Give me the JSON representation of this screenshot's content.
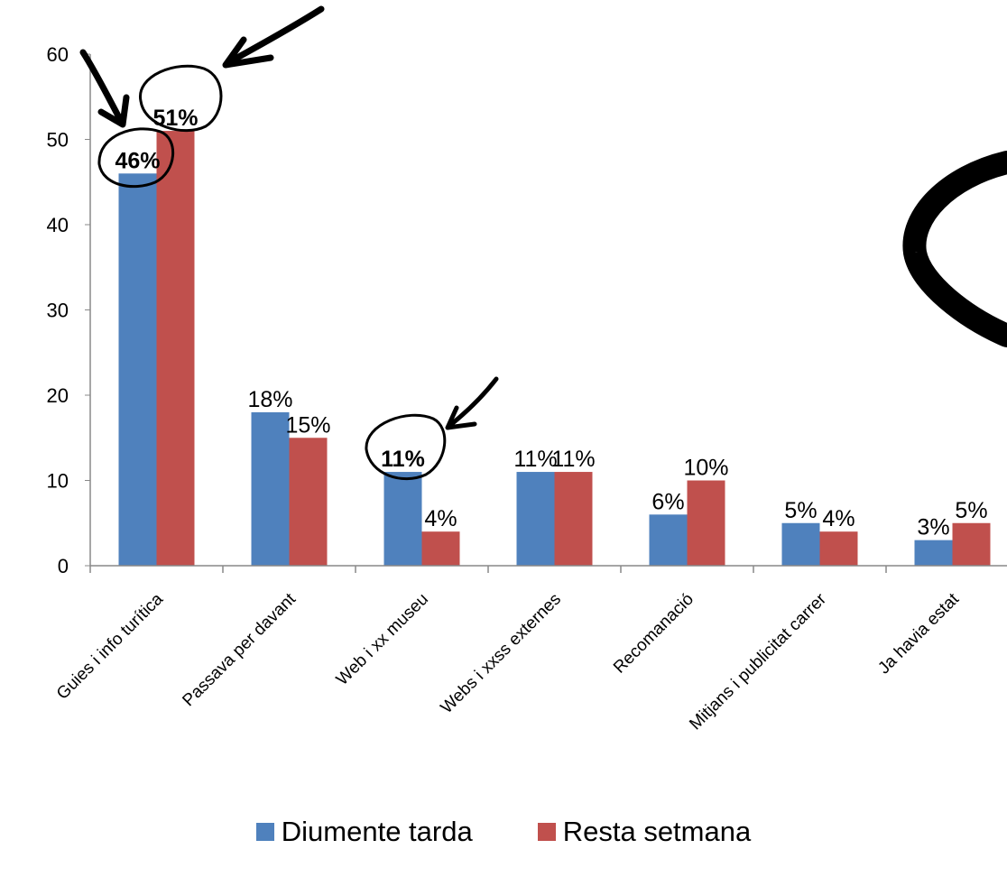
{
  "chart_data": {
    "type": "bar",
    "categories": [
      "Guies i info turítica",
      "Passava per davant",
      "Web i xx museu",
      "Webs i xxss externes",
      "Recomanació",
      "Mitjans i publicitat carrer",
      "Ja havia estat"
    ],
    "series": [
      {
        "name": "Diumente tarda",
        "color": "#4f81bd",
        "values": [
          46,
          18,
          11,
          11,
          6,
          5,
          3
        ],
        "labels": [
          "46%",
          "18%",
          "11%",
          "11%",
          "6%",
          "5%",
          "3%"
        ]
      },
      {
        "name": "Resta setmana",
        "color": "#c0504d",
        "values": [
          51,
          15,
          4,
          11,
          10,
          4,
          5
        ],
        "labels": [
          "51%",
          "15%",
          "4%",
          "11%",
          "10%",
          "4%",
          "5%"
        ]
      }
    ],
    "yticks": [
      "0",
      "10",
      "20",
      "30",
      "40",
      "50",
      "60"
    ],
    "ylim": [
      0,
      60
    ],
    "legend_position": "bottom",
    "grid": false
  }
}
